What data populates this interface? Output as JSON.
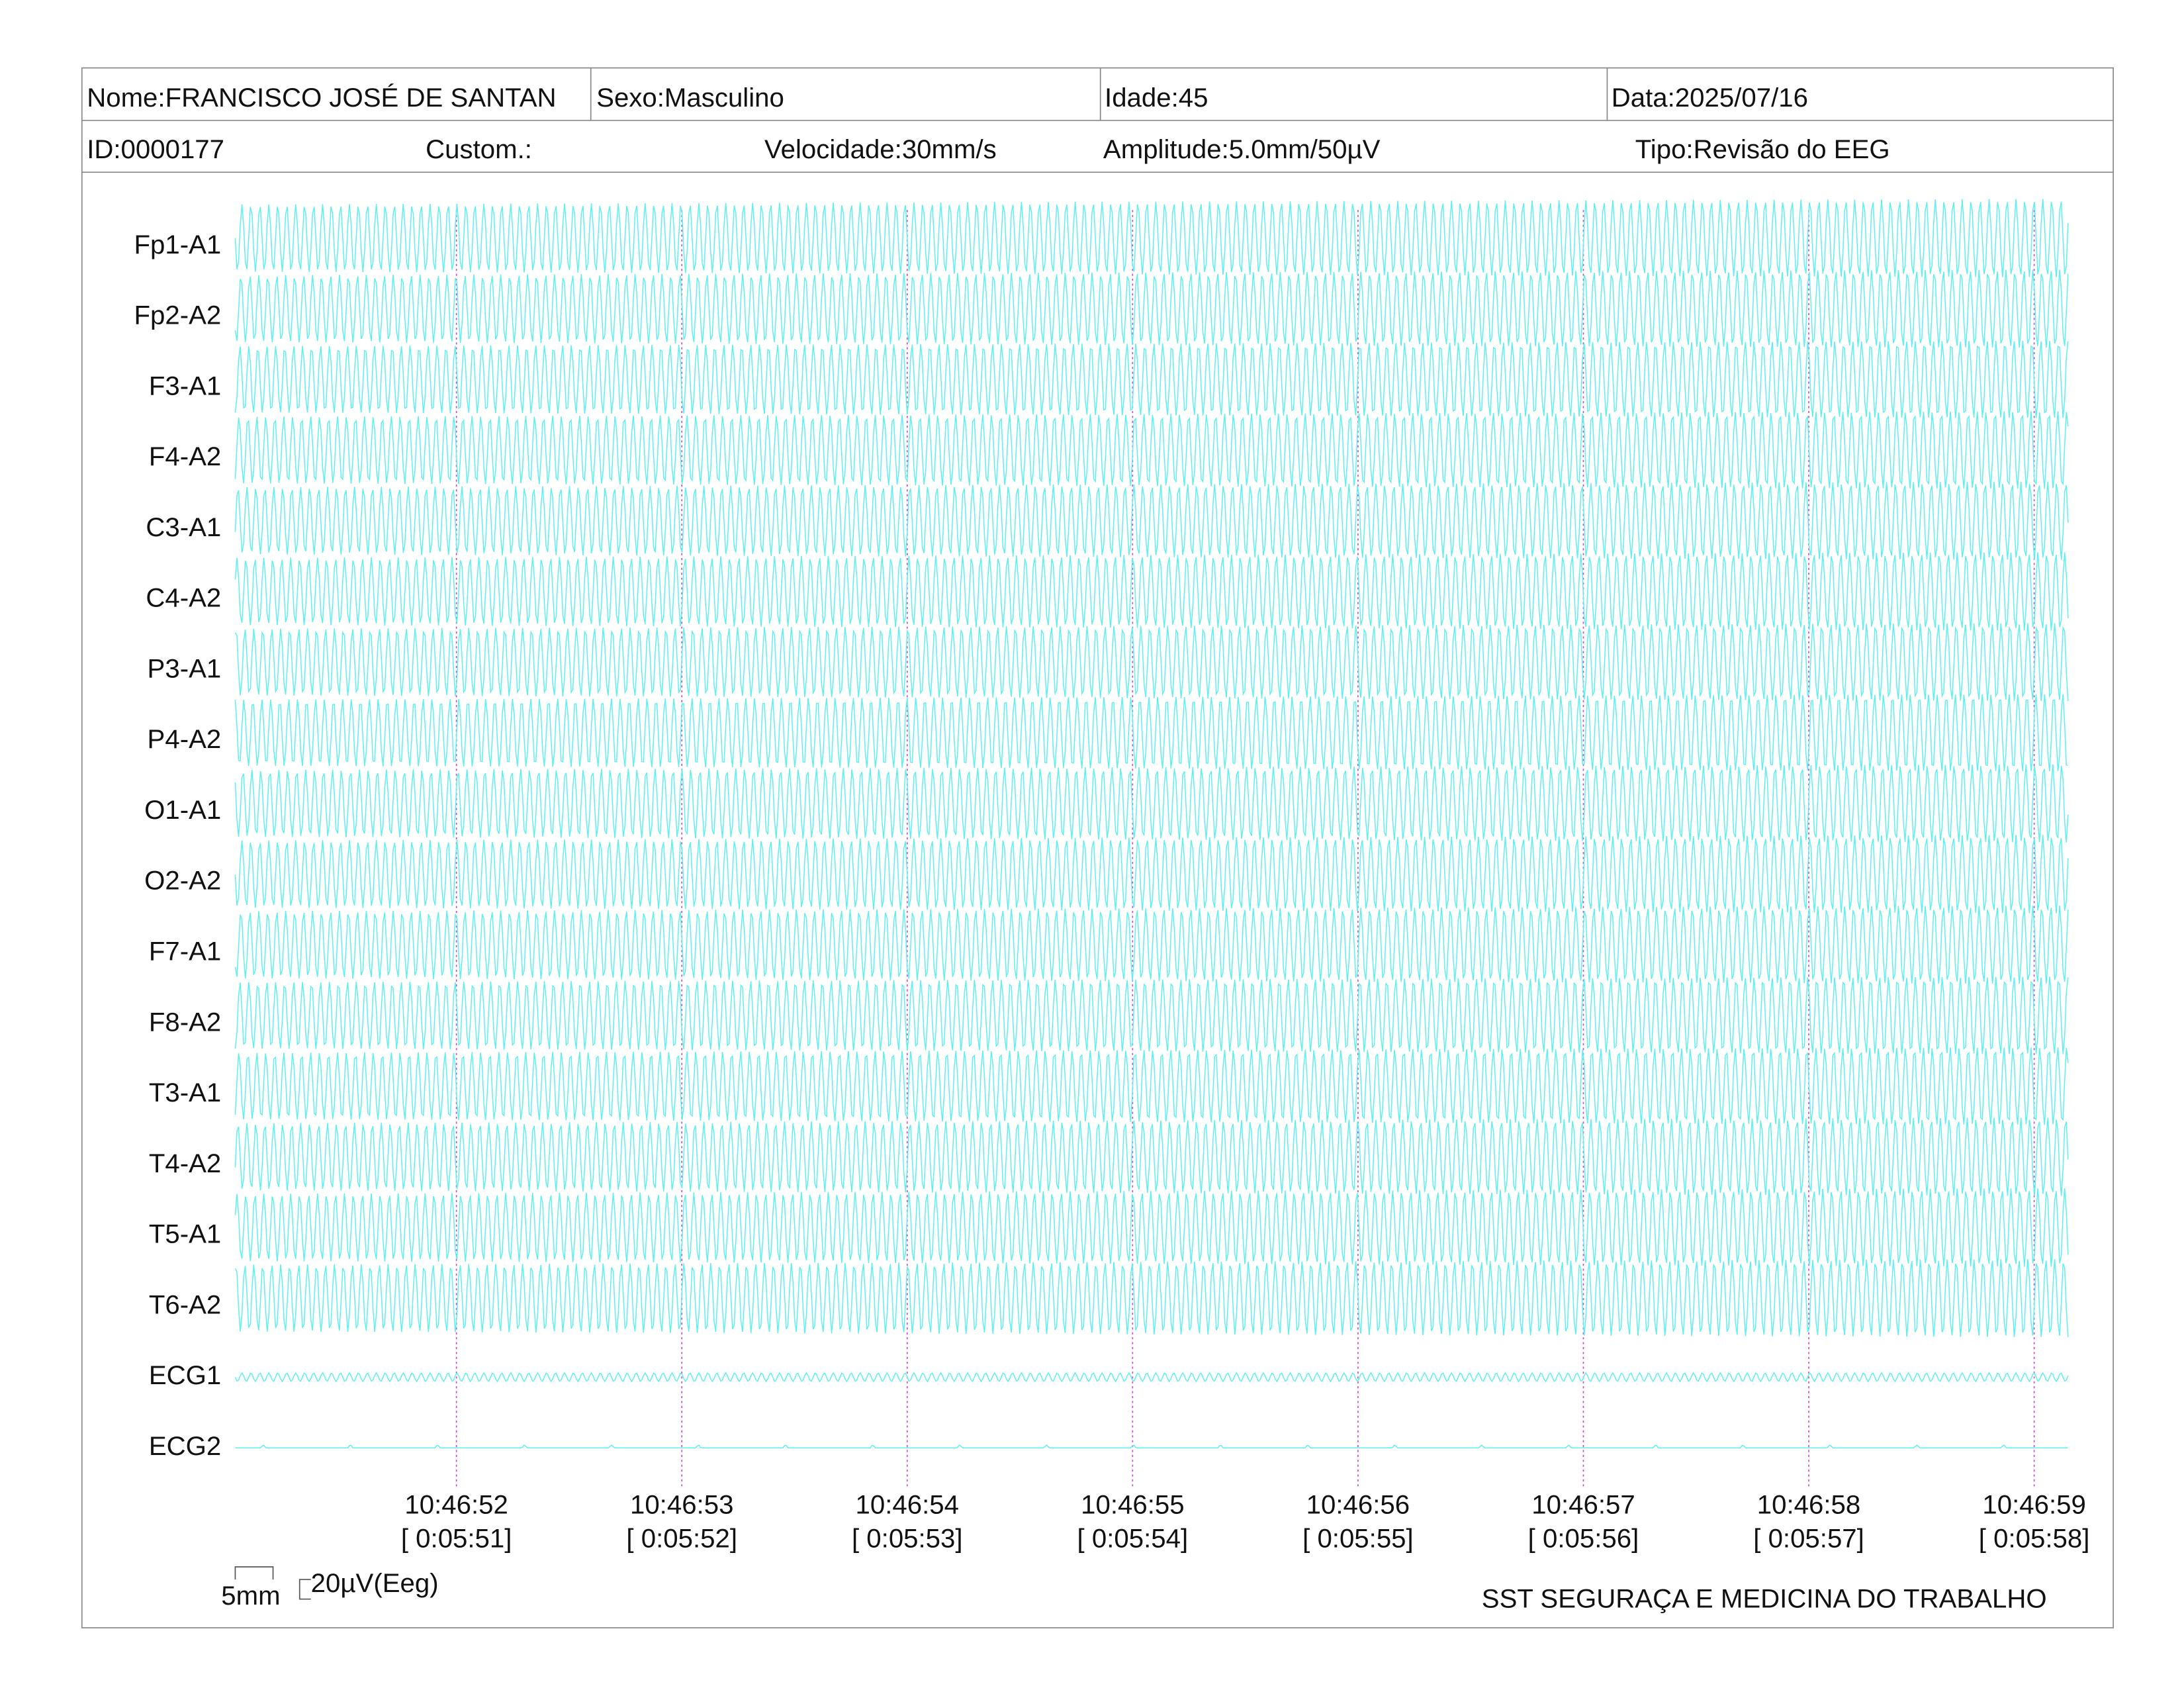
{
  "header": {
    "name": "Nome:FRANCISCO JOSÉ DE SANTAN",
    "sex": "Sexo:Masculino",
    "age": "Idade:45",
    "date": "Data:2025/07/16",
    "id": "ID:0000177",
    "custom": "Custom.:",
    "speed": "Velocidade:30mm/s",
    "amplitude": "Amplitude:5.0mm/50µV",
    "type": "Tipo:Revisão do EEG"
  },
  "channels": [
    "Fp1-A1",
    "Fp2-A2",
    "F3-A1",
    "F4-A2",
    "C3-A1",
    "C4-A2",
    "P3-A1",
    "P4-A2",
    "O1-A1",
    "O2-A2",
    "F7-A1",
    "F8-A2",
    "T3-A1",
    "T4-A2",
    "T5-A1",
    "T6-A2",
    "ECG1",
    "ECG2"
  ],
  "time_marks": [
    {
      "clock": "10:46:52",
      "elapsed": "[ 0:05:51]"
    },
    {
      "clock": "10:46:53",
      "elapsed": "[ 0:05:52]"
    },
    {
      "clock": "10:46:54",
      "elapsed": "[ 0:05:53]"
    },
    {
      "clock": "10:46:55",
      "elapsed": "[ 0:05:54]"
    },
    {
      "clock": "10:46:56",
      "elapsed": "[ 0:05:55]"
    },
    {
      "clock": "10:46:57",
      "elapsed": "[ 0:05:56]"
    },
    {
      "clock": "10:46:58",
      "elapsed": "[ 0:05:57]"
    },
    {
      "clock": "10:46:59",
      "elapsed": "[ 0:05:58]"
    }
  ],
  "scale": {
    "length": "5mm",
    "amplitude": "20µV(Eeg)"
  },
  "footer": "SST SEGURAÇA E MEDICINA DO TRABALHO"
}
